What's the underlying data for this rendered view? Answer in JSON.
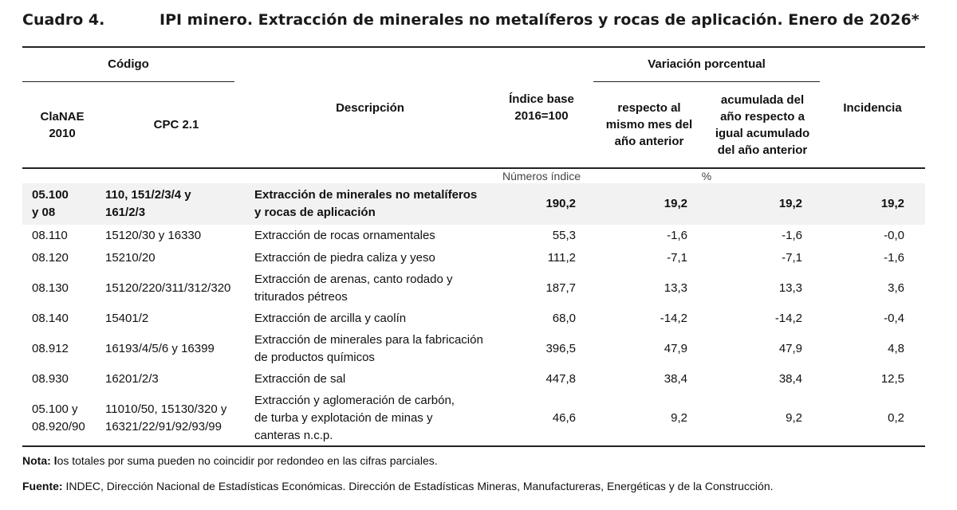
{
  "title": {
    "number": "Cuadro 4.",
    "text": "IPI minero. Extracción de minerales no metalíferos y rocas de aplicación. Enero de 2026*"
  },
  "header": {
    "codigo": "Código",
    "clanae_1": "ClaNAE",
    "clanae_2": "2010",
    "cpc": "CPC 2.1",
    "descripcion": "Descripción",
    "indice_1": "Índice base",
    "indice_2": "2016=100",
    "variacion": "Variación porcentual",
    "resp_1": "respecto al",
    "resp_2": "mismo mes del",
    "resp_3": "año anterior",
    "acum_1": "acumulada del",
    "acum_2": "año respecto a",
    "acum_3": "igual acumulado",
    "acum_4": "del año anterior",
    "incidencia": "Incidencia",
    "unit_index": "Números índice",
    "unit_pct": "%"
  },
  "rows": [
    {
      "clanae": [
        "05.100",
        "y 08"
      ],
      "cpc": [
        "110, 151/2/3/4 y",
        "161/2/3"
      ],
      "desc": [
        "Extracción de minerales no metalíferos",
        "y rocas de aplicación"
      ],
      "indice": "190,2",
      "mes": "19,2",
      "acum": "19,2",
      "inc": "19,2"
    },
    {
      "clanae": [
        "08.110"
      ],
      "cpc": [
        "15120/30 y 16330"
      ],
      "desc": [
        "Extracción de rocas ornamentales"
      ],
      "indice": "55,3",
      "mes": "-1,6",
      "acum": "-1,6",
      "inc": "-0,0"
    },
    {
      "clanae": [
        "08.120"
      ],
      "cpc": [
        "15210/20"
      ],
      "desc": [
        "Extracción de piedra caliza y yeso"
      ],
      "indice": "111,2",
      "mes": "-7,1",
      "acum": "-7,1",
      "inc": "-1,6"
    },
    {
      "clanae": [
        "08.130"
      ],
      "cpc": [
        "15120/220/311/312/320"
      ],
      "desc": [
        "Extracción de arenas, canto rodado y",
        "triturados pétreos"
      ],
      "indice": "187,7",
      "mes": "13,3",
      "acum": "13,3",
      "inc": "3,6"
    },
    {
      "clanae": [
        "08.140"
      ],
      "cpc": [
        "15401/2"
      ],
      "desc": [
        "Extracción de arcilla y caolín"
      ],
      "indice": "68,0",
      "mes": "-14,2",
      "acum": "-14,2",
      "inc": "-0,4"
    },
    {
      "clanae": [
        "08.912"
      ],
      "cpc": [
        "16193/4/5/6 y 16399"
      ],
      "desc": [
        "Extracción de minerales para la fabricación",
        "de productos químicos"
      ],
      "indice": "396,5",
      "mes": "47,9",
      "acum": "47,9",
      "inc": "4,8"
    },
    {
      "clanae": [
        "08.930"
      ],
      "cpc": [
        "16201/2/3"
      ],
      "desc": [
        "Extracción de sal"
      ],
      "indice": "447,8",
      "mes": "38,4",
      "acum": "38,4",
      "inc": "12,5"
    },
    {
      "clanae": [
        "05.100 y",
        "08.920/90"
      ],
      "cpc": [
        "11010/50, 15130/320 y",
        "16321/22/91/92/93/99"
      ],
      "desc": [
        "Extracción y aglomeración de carbón,",
        "de turba y explotación de minas y",
        "canteras n.c.p."
      ],
      "indice": "46,6",
      "mes": "9,2",
      "acum": "9,2",
      "inc": "0,2"
    }
  ],
  "notes": {
    "nota_label": "Nota: l",
    "nota_text": "os totales por suma pueden no coincidir por redondeo en las cifras parciales.",
    "fuente_label": "Fuente:",
    "fuente_text": " INDEC, Dirección Nacional de Estadísticas Económicas. Dirección de Estadísticas Mineras, Manufactureras, Energéticas y de la Construcción."
  }
}
